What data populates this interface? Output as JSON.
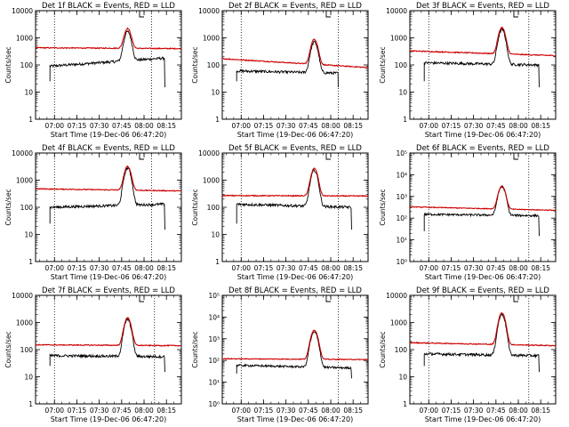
{
  "chart_data": [
    {
      "type": "line",
      "title": "Det 1f BLACK = Events, RED = LLD",
      "ylabel": "Counts/sec",
      "xlabel": "Start Time (19-Dec-06 06:47:20)",
      "xlim": [
        "06:47:20",
        "08:25:00"
      ],
      "ylim": [
        1,
        10000
      ],
      "log_y": true,
      "y_ticklabels": [
        "1",
        "10",
        "100",
        "1000",
        "10000"
      ],
      "x_ticklabels": [
        "07:00",
        "07:15",
        "07:30",
        "07:45",
        "08:00",
        "08:15"
      ],
      "dotted_vlines": [
        "07:00",
        "08:05"
      ],
      "series": [
        {
          "color": "#000000",
          "base_start": 90,
          "base_end": 180,
          "peak": 1700,
          "start": "06:57",
          "end": "08:14"
        },
        {
          "color": "#cc0000",
          "base_start": 430,
          "base_end": 400,
          "peak": 2200,
          "start": "06:47:20",
          "end": "08:25"
        }
      ]
    },
    {
      "type": "line",
      "title": "Det 2f BLACK = Events, RED = LLD",
      "ylabel": "Counts/sec",
      "xlabel": "Start Time (19-Dec-06 06:47:20)",
      "xlim": [
        "06:47:20",
        "08:25:00"
      ],
      "ylim": [
        1,
        10000
      ],
      "log_y": true,
      "y_ticklabels": [
        "1",
        "10",
        "100",
        "1000",
        "10000"
      ],
      "x_ticklabels": [
        "07:00",
        "07:15",
        "07:30",
        "07:45",
        "08:00",
        "08:15"
      ],
      "dotted_vlines": [
        "07:00",
        "08:05"
      ],
      "series": [
        {
          "color": "#000000",
          "base_start": 60,
          "base_end": 50,
          "peak": 700,
          "start": "06:57",
          "end": "08:05"
        },
        {
          "color": "#cc0000",
          "base_start": 170,
          "base_end": 80,
          "peak": 900,
          "start": "06:47:20",
          "end": "08:25"
        }
      ]
    },
    {
      "type": "line",
      "title": "Det 3f BLACK = Events, RED = LLD",
      "ylabel": "Counts/sec",
      "xlabel": "Start Time (19-Dec-06 06:47:20)",
      "xlim": [
        "06:47:20",
        "08:25:00"
      ],
      "ylim": [
        1,
        10000
      ],
      "log_y": true,
      "y_ticklabels": [
        "1",
        "10",
        "100",
        "1000",
        "10000"
      ],
      "x_ticklabels": [
        "07:00",
        "07:15",
        "07:30",
        "07:45",
        "08:00",
        "08:15"
      ],
      "dotted_vlines": [
        "07:00",
        "08:07"
      ],
      "series": [
        {
          "color": "#000000",
          "base_start": 120,
          "base_end": 100,
          "peak": 2000,
          "start": "06:57",
          "end": "08:14"
        },
        {
          "color": "#cc0000",
          "base_start": 330,
          "base_end": 220,
          "peak": 2400,
          "start": "06:47:20",
          "end": "08:25"
        }
      ]
    },
    {
      "type": "line",
      "title": "Det 4f BLACK = Events, RED = LLD",
      "ylabel": "Counts/sec",
      "xlabel": "Start Time (19-Dec-06 06:47:20)",
      "xlim": [
        "06:47:20",
        "08:25:00"
      ],
      "ylim": [
        1,
        10000
      ],
      "log_y": true,
      "y_ticklabels": [
        "1",
        "10",
        "100",
        "1000",
        "10000"
      ],
      "x_ticklabels": [
        "07:00",
        "07:15",
        "07:30",
        "07:45",
        "08:00",
        "08:15"
      ],
      "dotted_vlines": [
        "07:00",
        "08:05"
      ],
      "series": [
        {
          "color": "#000000",
          "base_start": 100,
          "base_end": 130,
          "peak": 2800,
          "start": "06:57",
          "end": "08:14"
        },
        {
          "color": "#cc0000",
          "base_start": 480,
          "base_end": 400,
          "peak": 3200,
          "start": "06:47:20",
          "end": "08:25"
        }
      ]
    },
    {
      "type": "line",
      "title": "Det 5f BLACK = Events, RED = LLD",
      "ylabel": "Counts/sec",
      "xlabel": "Start Time (19-Dec-06 06:47:20)",
      "xlim": [
        "06:47:20",
        "08:25:00"
      ],
      "ylim": [
        1,
        10000
      ],
      "log_y": true,
      "y_ticklabels": [
        "1",
        "10",
        "100",
        "1000",
        "10000"
      ],
      "x_ticklabels": [
        "07:00",
        "07:15",
        "07:30",
        "07:45",
        "08:00",
        "08:15"
      ],
      "dotted_vlines": [
        "07:00",
        "08:05"
      ],
      "series": [
        {
          "color": "#000000",
          "base_start": 130,
          "base_end": 100,
          "peak": 2300,
          "start": "06:57",
          "end": "08:14"
        },
        {
          "color": "#cc0000",
          "base_start": 270,
          "base_end": 260,
          "peak": 2700,
          "start": "06:47:20",
          "end": "08:25"
        }
      ]
    },
    {
      "type": "line",
      "title": "Det 6f BLACK = Events, RED = LLD",
      "ylabel": "Counts/sec",
      "xlabel": "Start Time (19-Dec-06 06:47:20)",
      "xlim": [
        "06:47:20",
        "08:25:00"
      ],
      "ylim": [
        1,
        100000
      ],
      "log_y": true,
      "y_ticklabels": [
        "10⁰",
        "10¹",
        "10²",
        "10³",
        "10⁴",
        "10⁵"
      ],
      "x_ticklabels": [
        "07:00",
        "07:15",
        "07:30",
        "07:45",
        "08:00",
        "08:15"
      ],
      "dotted_vlines": [
        "07:00",
        "08:07"
      ],
      "series": [
        {
          "color": "#000000",
          "base_start": 150,
          "base_end": 130,
          "peak": 2800,
          "start": "06:57",
          "end": "08:14"
        },
        {
          "color": "#cc0000",
          "base_start": 330,
          "base_end": 230,
          "peak": 3000,
          "start": "06:47:20",
          "end": "08:25"
        }
      ]
    },
    {
      "type": "line",
      "title": "Det 7f BLACK = Events, RED = LLD",
      "ylabel": "Counts/sec",
      "xlabel": "Start Time (19-Dec-06 06:47:20)",
      "xlim": [
        "06:47:20",
        "08:25:00"
      ],
      "ylim": [
        1,
        10000
      ],
      "log_y": true,
      "y_ticklabels": [
        "1",
        "10",
        "100",
        "1000",
        "10000"
      ],
      "x_ticklabels": [
        "07:00",
        "07:15",
        "07:30",
        "07:45",
        "08:00",
        "08:15"
      ],
      "dotted_vlines": [
        "07:00",
        "08:07"
      ],
      "series": [
        {
          "color": "#000000",
          "base_start": 60,
          "base_end": 55,
          "peak": 1300,
          "start": "06:57",
          "end": "08:14"
        },
        {
          "color": "#cc0000",
          "base_start": 150,
          "base_end": 140,
          "peak": 1500,
          "start": "06:47:20",
          "end": "08:25"
        }
      ]
    },
    {
      "type": "line",
      "title": "Det 8f BLACK = Events, RED = LLD",
      "ylabel": "Counts/sec",
      "xlabel": "Start Time (19-Dec-06 06:47:20)",
      "xlim": [
        "06:47:20",
        "08:25:00"
      ],
      "ylim": [
        1,
        100000
      ],
      "log_y": true,
      "y_ticklabels": [
        "10⁰",
        "10¹",
        "10²",
        "10³",
        "10⁴",
        "10⁵"
      ],
      "x_ticklabels": [
        "07:00",
        "07:15",
        "07:30",
        "07:45",
        "08:00",
        "08:15"
      ],
      "dotted_vlines": [
        "07:00",
        "08:05"
      ],
      "series": [
        {
          "color": "#000000",
          "base_start": 60,
          "base_end": 45,
          "peak": 2000,
          "start": "06:57",
          "end": "08:14"
        },
        {
          "color": "#cc0000",
          "base_start": 120,
          "base_end": 110,
          "peak": 2500,
          "start": "06:47:20",
          "end": "08:25"
        }
      ]
    },
    {
      "type": "line",
      "title": "Det 9f BLACK = Events, RED = LLD",
      "ylabel": "Counts/sec",
      "xlabel": "Start Time (19-Dec-06 06:47:20)",
      "xlim": [
        "06:47:20",
        "08:25:00"
      ],
      "ylim": [
        1,
        10000
      ],
      "log_y": true,
      "y_ticklabels": [
        "1",
        "10",
        "100",
        "1000",
        "10000"
      ],
      "x_ticklabels": [
        "07:00",
        "07:15",
        "07:30",
        "07:45",
        "08:00",
        "08:15"
      ],
      "dotted_vlines": [
        "07:00",
        "08:07"
      ],
      "series": [
        {
          "color": "#000000",
          "base_start": 70,
          "base_end": 60,
          "peak": 2000,
          "start": "06:57",
          "end": "08:14"
        },
        {
          "color": "#cc0000",
          "base_start": 180,
          "base_end": 140,
          "peak": 2300,
          "start": "06:47:20",
          "end": "08:25"
        }
      ]
    }
  ]
}
